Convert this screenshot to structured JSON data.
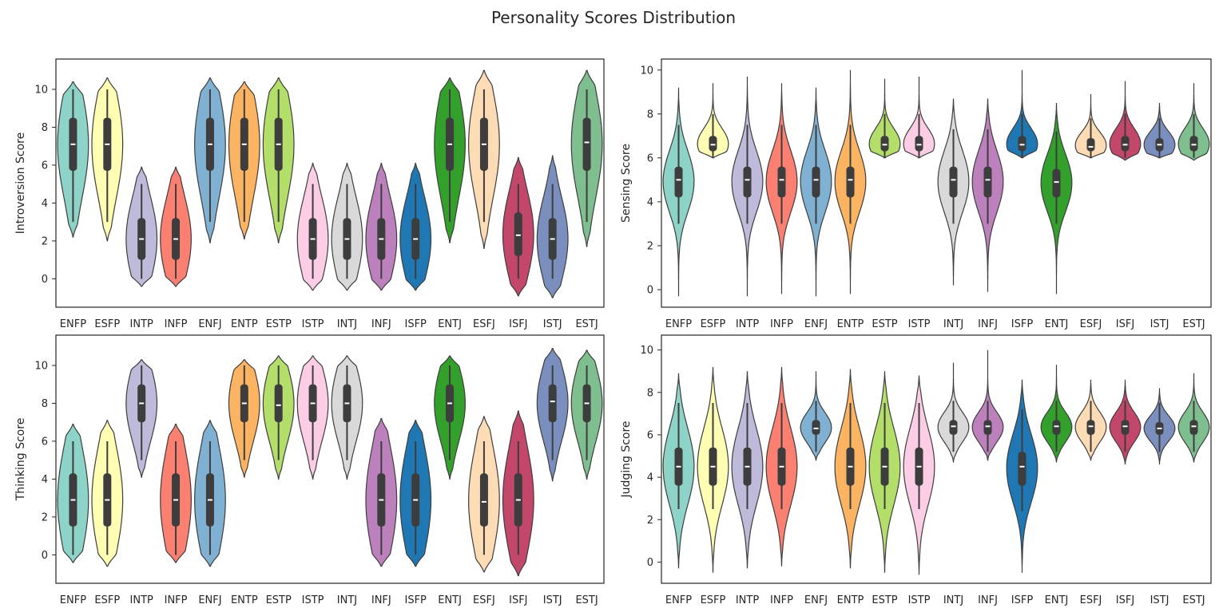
{
  "suptitle": "Personality Scores Distribution",
  "categories": [
    "ENFP",
    "ESFP",
    "INTP",
    "INFP",
    "ENFJ",
    "ENTP",
    "ESTP",
    "ISTP",
    "INTJ",
    "INFJ",
    "ISFP",
    "ENTJ",
    "ESFJ",
    "ISFJ",
    "ISTJ",
    "ESTJ"
  ],
  "palette": [
    "#8dd3c7",
    "#ffffb3",
    "#bebada",
    "#fb8072",
    "#80b1d3",
    "#fdb462",
    "#b3de69",
    "#fccde5",
    "#d9d9d9",
    "#bc80bd",
    "#1f78b4",
    "#33a02c",
    "#fddbb4",
    "#c2476b",
    "#7b8fbf",
    "#7fbf8f"
  ],
  "chart_data": [
    {
      "type": "violin",
      "ylabel": "Introversion Score",
      "ylim": [
        -1.5,
        11.6
      ],
      "yticks": [
        0,
        2,
        4,
        6,
        8,
        10
      ],
      "categories": [
        "ENFP",
        "ESFP",
        "INTP",
        "INFP",
        "ENFJ",
        "ENTP",
        "ESTP",
        "ISTP",
        "INTJ",
        "INFJ",
        "ISFP",
        "ENTJ",
        "ESFJ",
        "ISFJ",
        "ISTJ",
        "ESTJ"
      ],
      "series": [
        {
          "min": 2.2,
          "max": 10.4,
          "q1": 5.7,
          "median": 7.1,
          "q3": 8.5,
          "wlo": 3.0,
          "whi": 10.0
        },
        {
          "min": 2.0,
          "max": 10.6,
          "q1": 5.7,
          "median": 7.1,
          "q3": 8.5,
          "wlo": 3.0,
          "whi": 10.0
        },
        {
          "min": -0.4,
          "max": 5.9,
          "q1": 1.0,
          "median": 2.1,
          "q3": 3.2,
          "wlo": 0.0,
          "whi": 5.0
        },
        {
          "min": -0.4,
          "max": 5.9,
          "q1": 1.0,
          "median": 2.1,
          "q3": 3.2,
          "wlo": 0.0,
          "whi": 5.0
        },
        {
          "min": 1.9,
          "max": 10.6,
          "q1": 5.7,
          "median": 7.1,
          "q3": 8.5,
          "wlo": 3.0,
          "whi": 10.0
        },
        {
          "min": 2.1,
          "max": 10.4,
          "q1": 5.7,
          "median": 7.1,
          "q3": 8.5,
          "wlo": 3.0,
          "whi": 10.0
        },
        {
          "min": 1.9,
          "max": 10.6,
          "q1": 5.7,
          "median": 7.1,
          "q3": 8.5,
          "wlo": 3.0,
          "whi": 10.0
        },
        {
          "min": -0.6,
          "max": 6.1,
          "q1": 1.0,
          "median": 2.1,
          "q3": 3.2,
          "wlo": 0.0,
          "whi": 5.0
        },
        {
          "min": -0.6,
          "max": 6.1,
          "q1": 1.0,
          "median": 2.1,
          "q3": 3.2,
          "wlo": 0.0,
          "whi": 5.0
        },
        {
          "min": -0.6,
          "max": 6.1,
          "q1": 1.0,
          "median": 2.1,
          "q3": 3.2,
          "wlo": 0.0,
          "whi": 5.0
        },
        {
          "min": -0.6,
          "max": 6.1,
          "q1": 1.0,
          "median": 2.1,
          "q3": 3.2,
          "wlo": 0.0,
          "whi": 5.0
        },
        {
          "min": 1.9,
          "max": 10.6,
          "q1": 5.7,
          "median": 7.1,
          "q3": 8.5,
          "wlo": 3.0,
          "whi": 10.0
        },
        {
          "min": 1.6,
          "max": 11.0,
          "q1": 5.7,
          "median": 7.1,
          "q3": 8.5,
          "wlo": 3.0,
          "whi": 10.0
        },
        {
          "min": -0.9,
          "max": 6.4,
          "q1": 1.2,
          "median": 2.3,
          "q3": 3.5,
          "wlo": 0.0,
          "whi": 5.0
        },
        {
          "min": -1.0,
          "max": 6.5,
          "q1": 1.0,
          "median": 2.1,
          "q3": 3.2,
          "wlo": 0.0,
          "whi": 5.0
        },
        {
          "min": 1.7,
          "max": 11.0,
          "q1": 5.7,
          "median": 7.2,
          "q3": 8.5,
          "wlo": 3.0,
          "whi": 10.0
        }
      ]
    },
    {
      "type": "violin",
      "ylabel": "Sensing Score",
      "ylim": [
        -0.8,
        10.5
      ],
      "yticks": [
        0,
        2,
        4,
        6,
        8,
        10
      ],
      "categories": [
        "ENFP",
        "ESFP",
        "INTP",
        "INFP",
        "ENFJ",
        "ENTP",
        "ESTP",
        "ISTP",
        "INTJ",
        "INFJ",
        "ISFP",
        "ENTJ",
        "ESFJ",
        "ISFJ",
        "ISTJ",
        "ESTJ"
      ],
      "series": [
        {
          "min": -0.3,
          "max": 9.2,
          "q1": 4.2,
          "median": 5.0,
          "q3": 5.6,
          "wlo": 3.0,
          "whi": 7.5
        },
        {
          "min": 6.0,
          "max": 9.4,
          "q1": 6.3,
          "median": 6.6,
          "q3": 7.0,
          "wlo": 6.0,
          "whi": 8.0
        },
        {
          "min": -0.3,
          "max": 9.7,
          "q1": 4.2,
          "median": 5.0,
          "q3": 5.6,
          "wlo": 3.0,
          "whi": 7.5
        },
        {
          "min": -0.2,
          "max": 9.4,
          "q1": 4.2,
          "median": 5.0,
          "q3": 5.6,
          "wlo": 3.0,
          "whi": 7.5
        },
        {
          "min": -0.3,
          "max": 9.2,
          "q1": 4.2,
          "median": 5.0,
          "q3": 5.6,
          "wlo": 3.0,
          "whi": 7.5
        },
        {
          "min": -0.2,
          "max": 10.0,
          "q1": 4.2,
          "median": 5.0,
          "q3": 5.6,
          "wlo": 3.0,
          "whi": 7.5
        },
        {
          "min": 6.0,
          "max": 9.6,
          "q1": 6.3,
          "median": 6.6,
          "q3": 7.0,
          "wlo": 6.0,
          "whi": 8.0
        },
        {
          "min": 6.0,
          "max": 9.7,
          "q1": 6.3,
          "median": 6.6,
          "q3": 7.0,
          "wlo": 6.0,
          "whi": 8.0
        },
        {
          "min": 0.2,
          "max": 8.7,
          "q1": 4.2,
          "median": 5.0,
          "q3": 5.6,
          "wlo": 3.0,
          "whi": 7.3
        },
        {
          "min": -0.1,
          "max": 8.7,
          "q1": 4.2,
          "median": 5.0,
          "q3": 5.6,
          "wlo": 3.0,
          "whi": 7.3
        },
        {
          "min": 6.0,
          "max": 10.0,
          "q1": 6.3,
          "median": 6.6,
          "q3": 7.0,
          "wlo": 6.0,
          "whi": 8.0
        },
        {
          "min": -0.2,
          "max": 8.5,
          "q1": 4.2,
          "median": 4.9,
          "q3": 5.5,
          "wlo": 3.0,
          "whi": 7.2
        },
        {
          "min": 6.0,
          "max": 8.9,
          "q1": 6.3,
          "median": 6.5,
          "q3": 6.9,
          "wlo": 6.0,
          "whi": 7.8
        },
        {
          "min": 5.9,
          "max": 9.5,
          "q1": 6.3,
          "median": 6.6,
          "q3": 7.0,
          "wlo": 6.0,
          "whi": 8.0
        },
        {
          "min": 6.0,
          "max": 8.5,
          "q1": 6.3,
          "median": 6.6,
          "q3": 6.9,
          "wlo": 6.0,
          "whi": 7.8
        },
        {
          "min": 5.9,
          "max": 9.4,
          "q1": 6.3,
          "median": 6.6,
          "q3": 7.0,
          "wlo": 6.0,
          "whi": 8.0
        }
      ]
    },
    {
      "type": "violin",
      "ylabel": "Thinking Score",
      "ylim": [
        -1.5,
        11.6
      ],
      "yticks": [
        0,
        2,
        4,
        6,
        8,
        10
      ],
      "categories": [
        "ENFP",
        "ESFP",
        "INTP",
        "INFP",
        "ENFJ",
        "ENTP",
        "ESTP",
        "ISTP",
        "INTJ",
        "INFJ",
        "ISFP",
        "ENTJ",
        "ESFJ",
        "ISFJ",
        "ISTJ",
        "ESTJ"
      ],
      "series": [
        {
          "min": -0.4,
          "max": 6.9,
          "q1": 1.5,
          "median": 2.9,
          "q3": 4.3,
          "wlo": 0.0,
          "whi": 6.0
        },
        {
          "min": -0.6,
          "max": 7.1,
          "q1": 1.5,
          "median": 2.9,
          "q3": 4.3,
          "wlo": 0.0,
          "whi": 6.0
        },
        {
          "min": 4.1,
          "max": 10.3,
          "q1": 7.0,
          "median": 8.0,
          "q3": 9.0,
          "wlo": 5.0,
          "whi": 10.0
        },
        {
          "min": -0.4,
          "max": 6.9,
          "q1": 1.5,
          "median": 2.9,
          "q3": 4.3,
          "wlo": 0.0,
          "whi": 6.0
        },
        {
          "min": -0.6,
          "max": 7.1,
          "q1": 1.5,
          "median": 2.9,
          "q3": 4.3,
          "wlo": 0.0,
          "whi": 6.0
        },
        {
          "min": 4.1,
          "max": 10.3,
          "q1": 7.0,
          "median": 8.0,
          "q3": 9.0,
          "wlo": 5.0,
          "whi": 10.0
        },
        {
          "min": 4.0,
          "max": 10.5,
          "q1": 7.0,
          "median": 7.9,
          "q3": 9.0,
          "wlo": 5.0,
          "whi": 10.0
        },
        {
          "min": 4.0,
          "max": 10.5,
          "q1": 7.0,
          "median": 8.0,
          "q3": 9.0,
          "wlo": 5.0,
          "whi": 10.0
        },
        {
          "min": 4.0,
          "max": 10.5,
          "q1": 7.0,
          "median": 8.0,
          "q3": 9.0,
          "wlo": 5.0,
          "whi": 10.0
        },
        {
          "min": -0.6,
          "max": 7.2,
          "q1": 1.5,
          "median": 2.9,
          "q3": 4.3,
          "wlo": 0.0,
          "whi": 6.0
        },
        {
          "min": -0.6,
          "max": 7.1,
          "q1": 1.5,
          "median": 2.9,
          "q3": 4.3,
          "wlo": 0.0,
          "whi": 6.0
        },
        {
          "min": 4.0,
          "max": 10.5,
          "q1": 7.0,
          "median": 8.0,
          "q3": 9.0,
          "wlo": 5.0,
          "whi": 10.0
        },
        {
          "min": -0.9,
          "max": 7.3,
          "q1": 1.5,
          "median": 2.8,
          "q3": 4.3,
          "wlo": 0.0,
          "whi": 6.0
        },
        {
          "min": -1.1,
          "max": 7.6,
          "q1": 1.5,
          "median": 2.9,
          "q3": 4.3,
          "wlo": 0.0,
          "whi": 6.0
        },
        {
          "min": 3.9,
          "max": 10.9,
          "q1": 7.0,
          "median": 8.1,
          "q3": 9.0,
          "wlo": 5.0,
          "whi": 10.0
        },
        {
          "min": 4.0,
          "max": 10.8,
          "q1": 7.0,
          "median": 8.0,
          "q3": 9.0,
          "wlo": 5.0,
          "whi": 10.0
        }
      ]
    },
    {
      "type": "violin",
      "ylabel": "Judging Score",
      "ylim": [
        -1.0,
        10.7
      ],
      "yticks": [
        0,
        2,
        4,
        6,
        8,
        10
      ],
      "categories": [
        "ENFP",
        "ESFP",
        "INTP",
        "INFP",
        "ENFJ",
        "ENTP",
        "ESTP",
        "ISTP",
        "INTJ",
        "INFJ",
        "ISFP",
        "ENTJ",
        "ESFJ",
        "ISFJ",
        "ISTJ",
        "ESTJ"
      ],
      "series": [
        {
          "min": -0.3,
          "max": 8.9,
          "q1": 3.6,
          "median": 4.5,
          "q3": 5.4,
          "wlo": 2.5,
          "whi": 7.5
        },
        {
          "min": -0.5,
          "max": 9.2,
          "q1": 3.6,
          "median": 4.5,
          "q3": 5.4,
          "wlo": 2.5,
          "whi": 7.5
        },
        {
          "min": -0.3,
          "max": 9.0,
          "q1": 3.6,
          "median": 4.5,
          "q3": 5.4,
          "wlo": 2.5,
          "whi": 7.5
        },
        {
          "min": -0.2,
          "max": 9.2,
          "q1": 3.6,
          "median": 4.5,
          "q3": 5.4,
          "wlo": 2.5,
          "whi": 7.5
        },
        {
          "min": 4.8,
          "max": 9.0,
          "q1": 6.0,
          "median": 6.3,
          "q3": 6.7,
          "wlo": 5.2,
          "whi": 7.6
        },
        {
          "min": -0.3,
          "max": 9.1,
          "q1": 3.6,
          "median": 4.5,
          "q3": 5.4,
          "wlo": 2.5,
          "whi": 7.5
        },
        {
          "min": -0.5,
          "max": 9.0,
          "q1": 3.6,
          "median": 4.5,
          "q3": 5.4,
          "wlo": 2.5,
          "whi": 7.5
        },
        {
          "min": -0.6,
          "max": 8.8,
          "q1": 3.6,
          "median": 4.5,
          "q3": 5.4,
          "wlo": 2.5,
          "whi": 7.5
        },
        {
          "min": 4.7,
          "max": 9.4,
          "q1": 6.0,
          "median": 6.4,
          "q3": 6.7,
          "wlo": 5.2,
          "whi": 7.6
        },
        {
          "min": 4.8,
          "max": 10.0,
          "q1": 6.0,
          "median": 6.4,
          "q3": 6.7,
          "wlo": 5.2,
          "whi": 7.6
        },
        {
          "min": -0.5,
          "max": 8.6,
          "q1": 3.6,
          "median": 4.5,
          "q3": 5.2,
          "wlo": 2.4,
          "whi": 7.2
        },
        {
          "min": 4.7,
          "max": 9.3,
          "q1": 6.0,
          "median": 6.4,
          "q3": 6.7,
          "wlo": 5.2,
          "whi": 7.6
        },
        {
          "min": 4.8,
          "max": 8.6,
          "q1": 6.0,
          "median": 6.4,
          "q3": 6.7,
          "wlo": 5.2,
          "whi": 7.6
        },
        {
          "min": 4.6,
          "max": 8.6,
          "q1": 6.0,
          "median": 6.4,
          "q3": 6.7,
          "wlo": 5.2,
          "whi": 7.6
        },
        {
          "min": 4.6,
          "max": 8.2,
          "q1": 6.0,
          "median": 6.3,
          "q3": 6.6,
          "wlo": 5.2,
          "whi": 7.5
        },
        {
          "min": 4.7,
          "max": 8.9,
          "q1": 6.0,
          "median": 6.4,
          "q3": 6.7,
          "wlo": 5.2,
          "whi": 7.6
        }
      ]
    }
  ]
}
